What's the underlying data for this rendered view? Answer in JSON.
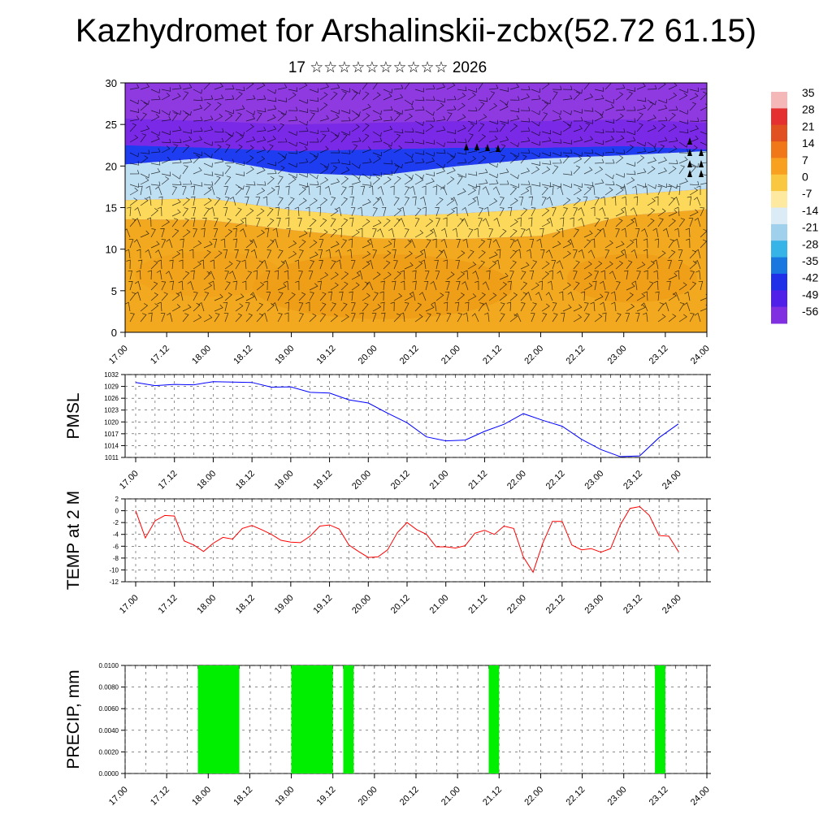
{
  "page": {
    "title": "Kazhydromet for Arshalinskii-zcbx(52.72 61.15)",
    "subtitle": "17 ☆☆☆☆☆☆☆☆☆☆ 2026"
  },
  "chart_data": [
    {
      "id": "cross_section",
      "type": "heatmap",
      "title": "",
      "xlabel": "",
      "ylabel": "",
      "x_ticks": [
        "17.00",
        "17.12",
        "18.00",
        "18.12",
        "19.00",
        "19.12",
        "20.00",
        "20.12",
        "21.00",
        "21.12",
        "22.00",
        "22.12",
        "23.00",
        "23.12",
        "24.00"
      ],
      "y_ticks": [
        0,
        5,
        10,
        15,
        20,
        25,
        30
      ],
      "ylim": [
        0,
        30
      ],
      "colorbar": {
        "labels": [
          "35",
          "28",
          "21",
          "14",
          "7",
          "0",
          "-7",
          "-14",
          "-21",
          "-28",
          "-35",
          "-42",
          "-49",
          "-56"
        ],
        "colors": [
          "#f4b8b8",
          "#e43030",
          "#e05020",
          "#f07818",
          "#f8a020",
          "#fac840",
          "#fde9a0",
          "#dcecf6",
          "#9fd0ec",
          "#36b4e8",
          "#1878e0",
          "#2030e8",
          "#5020e8",
          "#8030e0"
        ]
      },
      "layer_boundaries": {
        "x": [
          0,
          2,
          4,
          6,
          8,
          10,
          12,
          14
        ],
        "warm_top": [
          13.6,
          13.5,
          12.3,
          11.3,
          11.2,
          11.6,
          14.0,
          14.8
        ],
        "cold_bottom": [
          20.2,
          21.0,
          19.2,
          18.8,
          20.0,
          20.9,
          21.3,
          21.8
        ],
        "cold_top": [
          22.5,
          22.2,
          21.8,
          22.0,
          22.2,
          22.2,
          22.4,
          22.0
        ]
      },
      "level_colors": {
        "warm_deep": "#f2a91f",
        "warm_light": "#fcd95a",
        "cool": "#bfdff2",
        "jet": "#1e3cf0",
        "upper": "#7a2ae6",
        "top": "#8e3ae0"
      }
    },
    {
      "id": "pmsl",
      "type": "line",
      "ylabel": "PMSL",
      "color": "#0000ff",
      "ylim": [
        1011,
        1032
      ],
      "y_ticks": [
        1011,
        1014,
        1017,
        1020,
        1023,
        1026,
        1029,
        1032
      ],
      "x_ticks": [
        "17.00",
        "17.12",
        "18.00",
        "18.12",
        "19.00",
        "19.12",
        "20.00",
        "20.12",
        "21.00",
        "21.12",
        "22.00",
        "22.12",
        "23.00",
        "23.12",
        "24.00"
      ],
      "x": [
        0,
        0.5,
        1,
        1.5,
        2,
        2.5,
        3,
        3.5,
        4,
        4.5,
        5,
        5.5,
        6,
        6.5,
        7,
        7.5,
        8,
        8.5,
        9,
        9.5,
        10,
        10.5,
        11,
        11.5,
        12,
        12.5,
        13,
        13.5,
        14
      ],
      "values": [
        1030.0,
        1029.2,
        1029.5,
        1029.4,
        1030.2,
        1030.1,
        1030.0,
        1028.8,
        1028.9,
        1027.5,
        1027.3,
        1025.6,
        1024.8,
        1022.2,
        1019.8,
        1016.2,
        1015.2,
        1015.4,
        1017.6,
        1019.4,
        1022.1,
        1020.4,
        1018.9,
        1015.6,
        1013.0,
        1011.2,
        1011.4,
        1016.0,
        1019.5
      ]
    },
    {
      "id": "temp2m",
      "type": "line",
      "ylabel": "TEMP at 2 M",
      "color": "#ff0000",
      "ylim": [
        -12,
        2
      ],
      "y_ticks": [
        -12,
        -10,
        -8,
        -6,
        -4,
        -2,
        0,
        2
      ],
      "x_ticks": [
        "17.00",
        "17.12",
        "18.00",
        "18.12",
        "19.00",
        "19.12",
        "20.00",
        "20.12",
        "21.00",
        "21.12",
        "22.00",
        "22.12",
        "23.00",
        "23.12",
        "24.00"
      ],
      "x": [
        0,
        0.25,
        0.5,
        0.75,
        1,
        1.25,
        1.5,
        1.75,
        2,
        2.25,
        2.5,
        2.75,
        3,
        3.25,
        3.5,
        3.75,
        4,
        4.25,
        4.5,
        4.75,
        5,
        5.25,
        5.5,
        5.75,
        6,
        6.25,
        6.5,
        6.75,
        7,
        7.25,
        7.5,
        7.75,
        8,
        8.25,
        8.5,
        8.75,
        9,
        9.25,
        9.5,
        9.75,
        10,
        10.25,
        10.5,
        10.75,
        11,
        11.25,
        11.5,
        11.75,
        12,
        12.25,
        12.5,
        12.75,
        13,
        13.25,
        13.5,
        13.75,
        14
      ],
      "values": [
        0.0,
        -4.6,
        -1.7,
        -0.8,
        -0.9,
        -5.1,
        -5.8,
        -6.9,
        -5.5,
        -4.5,
        -4.8,
        -3.0,
        -2.5,
        -3.2,
        -4.0,
        -5.0,
        -5.3,
        -5.4,
        -4.3,
        -2.6,
        -2.4,
        -3.1,
        -5.8,
        -6.9,
        -7.9,
        -7.8,
        -6.6,
        -3.7,
        -2.0,
        -3.2,
        -4.0,
        -6.1,
        -6.1,
        -6.3,
        -5.9,
        -3.8,
        -3.3,
        -4.0,
        -2.6,
        -3.0,
        -7.8,
        -10.4,
        -5.5,
        -1.8,
        -1.8,
        -5.8,
        -6.6,
        -6.4,
        -7.0,
        -6.4,
        -2.4,
        0.4,
        0.7,
        -0.8,
        -4.2,
        -4.3,
        -6.9
      ]
    },
    {
      "id": "precip",
      "type": "bar",
      "ylabel": "PRECIP, mm",
      "color": "#00ee00",
      "ylim": [
        0,
        0.01
      ],
      "y_ticks": [
        "0.0000",
        "0.0020",
        "0.0040",
        "0.0060",
        "0.0080",
        "0.0100"
      ],
      "x_ticks": [
        "17.00",
        "17.12",
        "18.00",
        "18.12",
        "19.00",
        "19.12",
        "20.00",
        "20.12",
        "21.00",
        "21.12",
        "22.00",
        "22.12",
        "23.00",
        "23.12",
        "24.00"
      ],
      "intervals": [
        [
          1.75,
          2.75,
          0.01
        ],
        [
          4.0,
          5.0,
          0.01
        ],
        [
          5.25,
          5.5,
          0.01
        ],
        [
          8.75,
          9.0,
          0.01
        ],
        [
          12.75,
          13.0,
          0.01
        ]
      ]
    }
  ]
}
